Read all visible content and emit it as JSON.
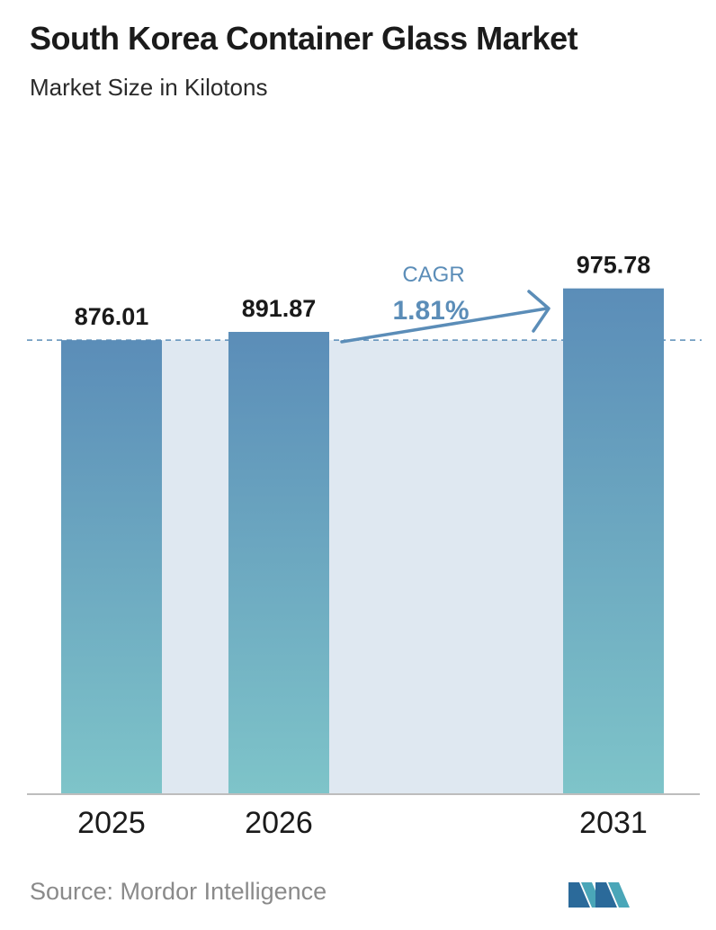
{
  "header": {
    "title": "South Korea Container Glass Market",
    "subtitle": "Market Size in Kilotons"
  },
  "chart_data": {
    "type": "bar",
    "categories": [
      "2025",
      "2026",
      "2031"
    ],
    "values": [
      876.01,
      891.87,
      975.78
    ],
    "value_labels": [
      "876.01",
      "891.87",
      "975.78"
    ],
    "title": "South Korea Container Glass Market",
    "subtitle": "Market Size in Kilotons",
    "xlabel": "",
    "ylabel": "",
    "grid": false,
    "legend": "none",
    "annotation": {
      "label": "CAGR",
      "value": "1.81%"
    },
    "colors": {
      "bar_top": "#5b8db8",
      "bar_bottom": "#7ec4c9",
      "band": "#dfe8f1",
      "accent": "#5b8db8",
      "axis": "#bdbdbd"
    }
  },
  "footer": {
    "source": "Source:  Mordor Intelligence",
    "logo_icon": "mordor-intelligence-logo-icon"
  }
}
